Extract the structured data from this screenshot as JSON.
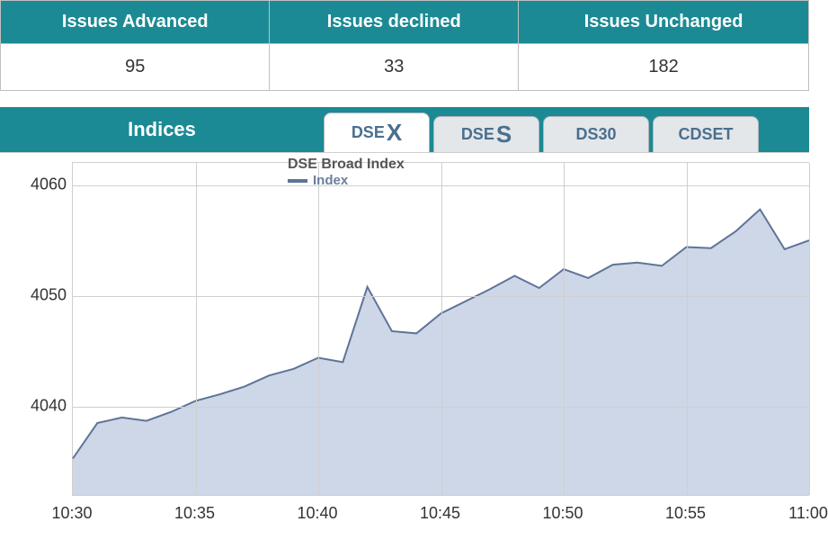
{
  "issues_table": {
    "header_bg": "#1b8a94",
    "header_color": "#ffffff",
    "cell_border": "#c0c0c0",
    "header_fontsize": 20,
    "cell_fontsize": 20,
    "columns": [
      "Issues Advanced",
      "Issues declined",
      "Issues Unchanged"
    ],
    "rows": [
      [
        95,
        33,
        182
      ]
    ]
  },
  "indices": {
    "label": "Indices",
    "label_bg": "#1b8a94",
    "label_color": "#ffffff",
    "tabs": [
      {
        "prefix": "DSE",
        "suffix": "X",
        "active": true
      },
      {
        "prefix": "DSE",
        "suffix": "S",
        "active": false
      },
      {
        "prefix": "DS30",
        "suffix": "",
        "active": false
      },
      {
        "prefix": "CDSET",
        "suffix": "",
        "active": false
      }
    ],
    "tab_bg_active": "#ffffff",
    "tab_bg_inactive": "#e3e7ea",
    "tab_text_color": "#4a6f8f",
    "tab_border": "#b0b6bb"
  },
  "chart": {
    "type": "area",
    "title": "DSE Broad Index",
    "title_fontsize": 16,
    "title_color": "#555555",
    "legend_label": "Index",
    "legend_color": "#6b7ea0",
    "line_color": "#5e7498",
    "line_width": 2,
    "fill_color": "#c6d0e3",
    "fill_opacity": 0.85,
    "background_color": "#ffffff",
    "grid_color": "#cfcfcf",
    "ylim": [
      4032,
      4062
    ],
    "yticks": [
      4040,
      4050,
      4060
    ],
    "xlim_minutes": [
      630,
      660
    ],
    "xticks_minutes": [
      630,
      635,
      640,
      645,
      650,
      655,
      660
    ],
    "xtick_labels": [
      "10:30",
      "10:35",
      "10:40",
      "10:45",
      "10:50",
      "10:55",
      "11:00"
    ],
    "label_fontsize": 18,
    "series": {
      "name": "Index",
      "x_minutes": [
        630,
        631,
        632,
        633,
        634,
        635,
        636,
        637,
        638,
        639,
        640,
        641,
        642,
        643,
        644,
        645,
        646,
        647,
        648,
        649,
        650,
        651,
        652,
        653,
        654,
        655,
        656,
        657,
        658,
        659,
        660
      ],
      "y": [
        4035.3,
        4038.5,
        4039.0,
        4038.7,
        4039.5,
        4040.5,
        4041.1,
        4041.8,
        4042.8,
        4043.4,
        4044.4,
        4044.0,
        4050.8,
        4046.8,
        4046.6,
        4048.4,
        4049.5,
        4050.6,
        4051.8,
        4050.7,
        4052.4,
        4051.6,
        4052.8,
        4053.0,
        4052.7,
        4054.4,
        4054.3,
        4055.8,
        4057.8,
        4054.2,
        4055.0
      ]
    }
  }
}
